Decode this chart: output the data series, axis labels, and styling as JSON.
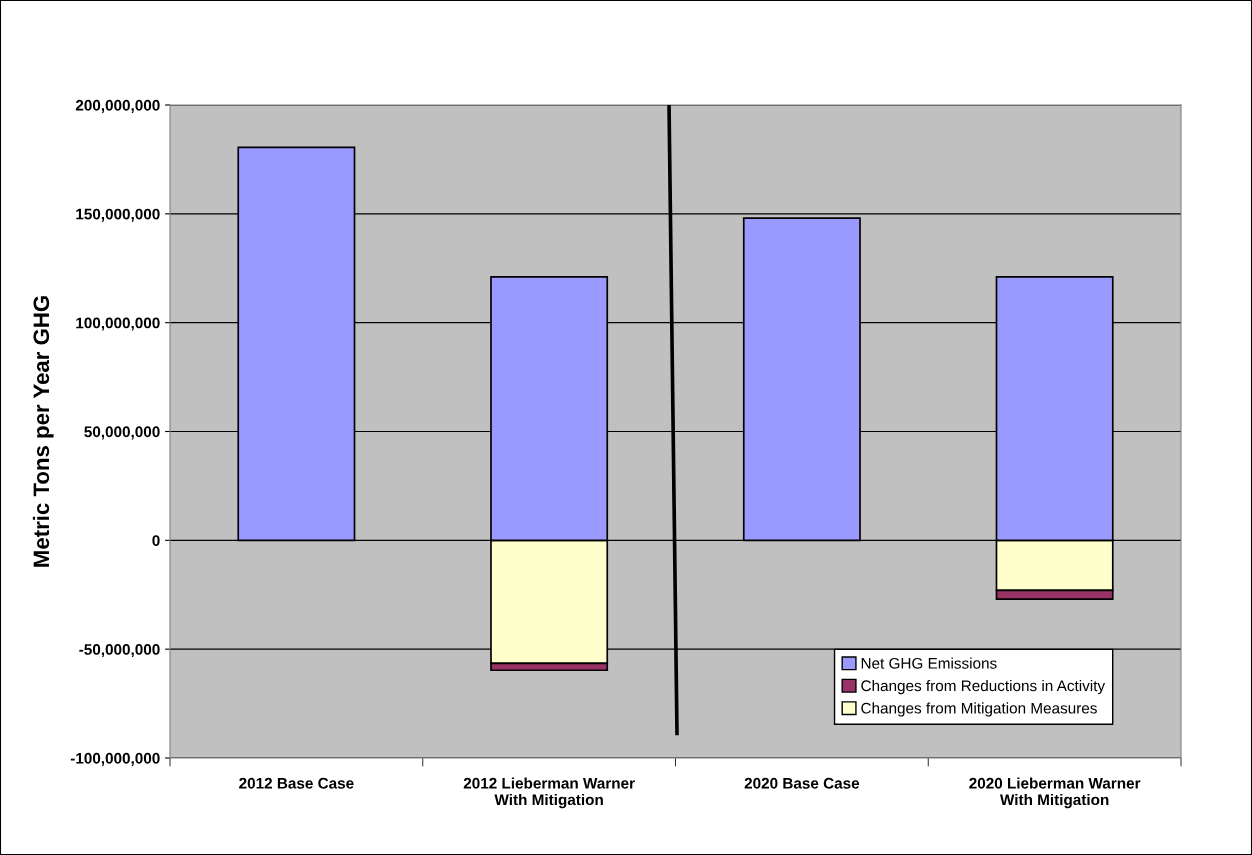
{
  "chart_data": {
    "type": "bar",
    "stacked": true,
    "ylabel": "Metric Tons per Year GHG",
    "categories": [
      "2012 Base Case",
      "2012 Lieberman Warner\nWith Mitigation",
      "2020 Base Case",
      "2020 Lieberman Warner\nWith Mitigation"
    ],
    "series": [
      {
        "name": "Changes from Mitigation Measures",
        "color": "#ffffcc",
        "values": [
          null,
          -56500000,
          null,
          -23000000
        ]
      },
      {
        "name": "Changes from Reductions in Activity",
        "color": "#993366",
        "values": [
          null,
          -3200000,
          null,
          -4000000
        ]
      },
      {
        "name": "Net GHG Emissions",
        "color": "#9999ff",
        "values": [
          180500000,
          121000000,
          148000000,
          121000000
        ]
      }
    ],
    "ylim": [
      -100000000,
      200000000
    ],
    "yticks": [
      {
        "value": -100000000,
        "label": "-100,000,000"
      },
      {
        "value": -50000000,
        "label": "-50,000,000"
      },
      0,
      {
        "value": 50000000,
        "label": "50,000,000"
      },
      {
        "value": 100000000,
        "label": "100,000,000"
      },
      {
        "value": 150000000,
        "label": "150,000,000"
      },
      {
        "value": 200000000,
        "label": "200,000,000"
      }
    ],
    "grid": "y",
    "legend": "bottom right"
  }
}
